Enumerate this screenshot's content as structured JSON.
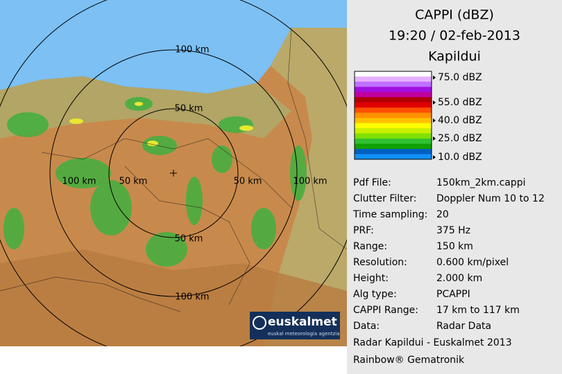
{
  "map": {
    "range_labels": [
      "100 km",
      "50 km",
      "100 km",
      "50 km",
      "50 km",
      "100 km",
      "50 km",
      "100 km"
    ],
    "logo": {
      "name": "euskalmet",
      "tagline": "euskal meteorologia agentzia"
    }
  },
  "panel": {
    "title": [
      "CAPPI (dBZ)",
      "19:20 / 02-feb-2013",
      "Kapildui"
    ],
    "scale": {
      "colors": [
        "#ffffff",
        "#e8b0ff",
        "#c070ff",
        "#a010e0",
        "#c000a0",
        "#b00000",
        "#e00000",
        "#ff5000",
        "#ff9000",
        "#ffc000",
        "#ffff00",
        "#c8f000",
        "#80e000",
        "#30c030",
        "#10a000",
        "#0060c0",
        "#1090ff"
      ],
      "labels": [
        "75.0 dBZ",
        "55.0 dBZ",
        "40.0 dBZ",
        "25.0 dBZ",
        "10.0 dBZ"
      ]
    },
    "info": [
      [
        "Pdf File:",
        "150km_2km.cappi"
      ],
      [
        "Clutter Filter:",
        "Doppler Num 10 to 12"
      ],
      [
        "Time sampling:",
        "20"
      ],
      [
        "PRF:",
        "375 Hz"
      ],
      [
        "Range:",
        "150 km"
      ],
      [
        "Resolution:",
        "0.600 km/pixel"
      ],
      [
        "Height:",
        "2.000 km"
      ],
      [
        "Alg type:",
        "PCAPPI"
      ],
      [
        "CAPPI Range:",
        "17 km to 117 km"
      ],
      [
        "Data:",
        "Radar Data"
      ]
    ],
    "footer": [
      "Radar Kapildui - Euskalmet 2013",
      "Rainbow® Gematronik"
    ]
  }
}
